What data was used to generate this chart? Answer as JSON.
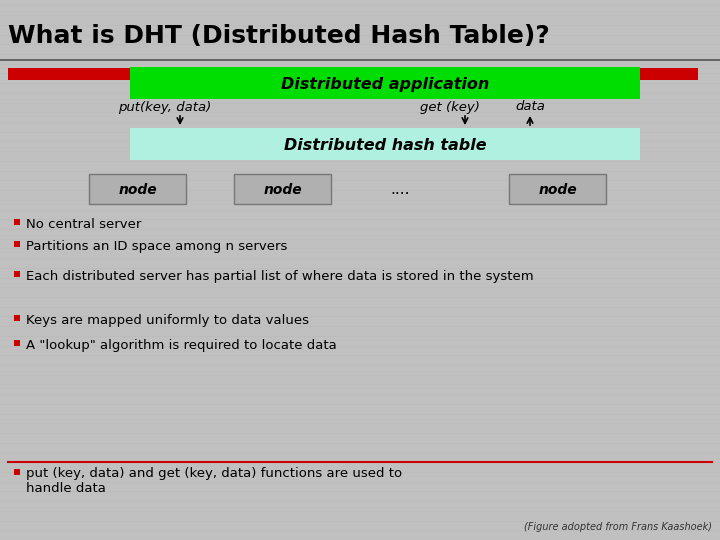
{
  "title": "What is DHT (Distributed Hash Table)?",
  "title_fontsize": 18,
  "bg_color": "#c0c0c0",
  "red_bar_color": "#cc0000",
  "green_box_color": "#00dd00",
  "light_cyan_box_color": "#b0f0e0",
  "dist_app_text": "Distributed application",
  "dist_hash_text": "Distributed hash table",
  "put_text": "put(key, data)",
  "get_text": "get (key)",
  "data_text": "data",
  "node_box_color": "#b0b0b0",
  "node_text": "node",
  "dots_text": "....",
  "bullet_color": "#cc0000",
  "bullet_items": [
    "No central server",
    "Partitions an ID space among n servers",
    "Each distributed server has partial list of where data is stored in the system",
    "Keys are mapped uniformly to data values",
    "A \"lookup\" algorithm is required to locate data"
  ],
  "last_bullet": "put (key, data) and get (key, data) functions are used to handle data",
  "caption": "(Figure adopted from Frans Kaashoek)",
  "separator_line_color": "#cc0000",
  "line_color": "#888888"
}
